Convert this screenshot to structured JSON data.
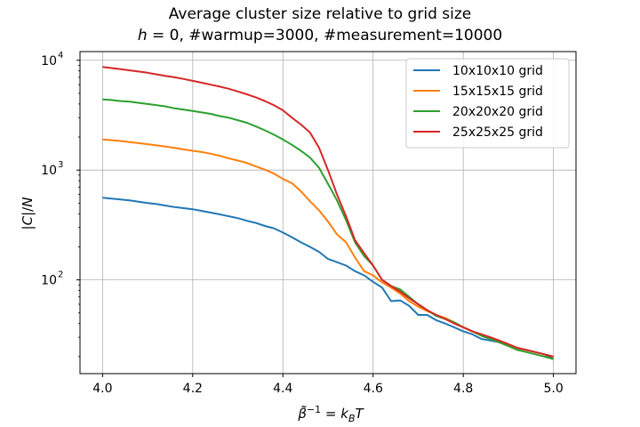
{
  "chart_data": {
    "type": "line",
    "title": "Average cluster size relative to grid size",
    "subtitle": "h = 0, #warmup=3000, #measurement=10000",
    "xlabel": "β̃⁻¹ = k_BT",
    "ylabel": "|C|/N",
    "xlim": [
      3.95,
      5.05
    ],
    "ylim": [
      14,
      12000
    ],
    "yscale": "log",
    "grid": true,
    "legend_position": "top-right",
    "x_ticks": [
      "4.0",
      "4.2",
      "4.4",
      "4.6",
      "4.8",
      "5.0"
    ],
    "y_ticks": [
      {
        "base": "10",
        "exp": "2",
        "value": 100
      },
      {
        "base": "10",
        "exp": "3",
        "value": 1000
      },
      {
        "base": "10",
        "exp": "4",
        "value": 10000
      }
    ],
    "x": [
      4.0,
      4.02,
      4.04,
      4.06,
      4.08,
      4.1,
      4.12,
      4.14,
      4.16,
      4.18,
      4.2,
      4.22,
      4.24,
      4.26,
      4.28,
      4.3,
      4.32,
      4.34,
      4.36,
      4.38,
      4.4,
      4.42,
      4.44,
      4.46,
      4.48,
      4.5,
      4.52,
      4.54,
      4.56,
      4.58,
      4.6,
      4.62,
      4.64,
      4.66,
      4.68,
      4.7,
      4.72,
      4.74,
      4.76,
      4.78,
      4.8,
      4.82,
      4.84,
      4.86,
      4.88,
      4.9,
      4.92,
      4.94,
      4.96,
      4.98,
      5.0
    ],
    "series": [
      {
        "name": "10x10x10 grid",
        "color": "#1f77b4",
        "values": [
          560,
          550,
          540,
          530,
          515,
          500,
          490,
          475,
          460,
          450,
          440,
          425,
          410,
          395,
          380,
          365,
          345,
          330,
          310,
          295,
          270,
          245,
          220,
          200,
          180,
          155,
          145,
          135,
          120,
          110,
          96,
          85,
          64,
          65,
          58,
          48,
          48,
          43,
          40,
          37,
          34,
          32,
          29,
          28,
          27,
          25,
          24,
          23,
          22,
          21,
          19
        ]
      },
      {
        "name": "15x15x15 grid",
        "color": "#ff7f0e",
        "values": [
          1900,
          1870,
          1840,
          1800,
          1760,
          1720,
          1680,
          1640,
          1590,
          1540,
          1500,
          1460,
          1410,
          1350,
          1280,
          1220,
          1160,
          1080,
          1010,
          930,
          830,
          760,
          640,
          520,
          430,
          340,
          260,
          220,
          160,
          120,
          110,
          95,
          85,
          75,
          64,
          57,
          52,
          48,
          45,
          41,
          37,
          34,
          31,
          29,
          27,
          25,
          24,
          23,
          22,
          21,
          20
        ]
      },
      {
        "name": "20x20x20 grid",
        "color": "#2ca02c",
        "values": [
          4400,
          4350,
          4250,
          4200,
          4100,
          4000,
          3900,
          3800,
          3650,
          3550,
          3450,
          3350,
          3250,
          3100,
          3000,
          2850,
          2700,
          2500,
          2300,
          2100,
          1900,
          1700,
          1500,
          1300,
          1050,
          750,
          530,
          350,
          220,
          165,
          135,
          100,
          88,
          82,
          70,
          60,
          53,
          47,
          44,
          41,
          37,
          34,
          31,
          29,
          27,
          25,
          23,
          22,
          21,
          20,
          19
        ]
      },
      {
        "name": "25x25x25 grid",
        "color": "#d62728",
        "values": [
          8700,
          8500,
          8300,
          8100,
          7900,
          7700,
          7450,
          7200,
          7000,
          6750,
          6500,
          6250,
          6000,
          5750,
          5500,
          5200,
          4900,
          4600,
          4250,
          3900,
          3500,
          3000,
          2600,
          2200,
          1600,
          1000,
          600,
          380,
          230,
          175,
          135,
          100,
          88,
          78,
          68,
          60,
          53,
          48,
          44,
          40,
          37,
          34,
          32,
          30,
          28,
          26,
          24,
          23,
          22,
          21,
          20
        ]
      }
    ]
  }
}
